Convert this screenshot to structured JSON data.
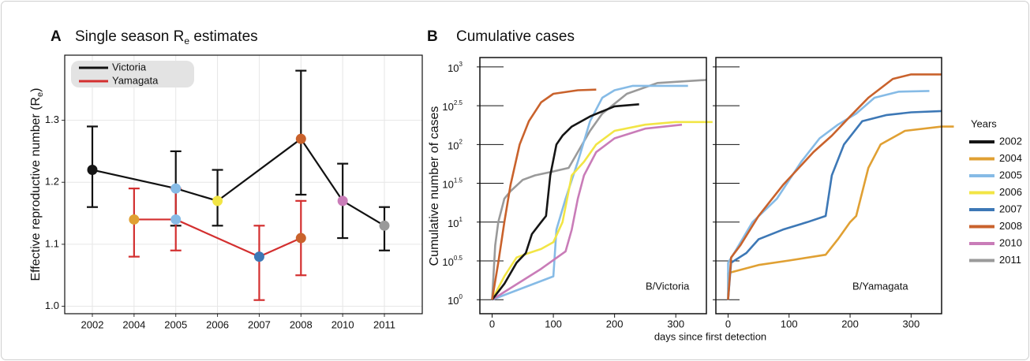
{
  "chart_data": [
    {
      "type": "pointrange",
      "panel": "A",
      "title": [
        "Single season R",
        "e",
        " estimates"
      ],
      "y_label": [
        "Effective reproductive number (R",
        "e",
        ")"
      ],
      "categories": [
        "2002",
        "2004",
        "2005",
        "2006",
        "2007",
        "2008",
        "2010",
        "2011"
      ],
      "point_colors": [
        "#151515",
        "#e0a033",
        "#86bbe6",
        "#f2e545",
        "#3d78b6",
        "#c9622c",
        "#c97cb8",
        "#9a9a9a"
      ],
      "series": [
        {
          "name": "Victoria",
          "color": "#111111",
          "values": [
            1.22,
            null,
            1.19,
            1.17,
            null,
            1.27,
            1.17,
            1.13
          ],
          "lower": [
            1.16,
            null,
            1.13,
            1.13,
            null,
            1.18,
            1.11,
            1.09
          ],
          "upper": [
            1.29,
            null,
            1.25,
            1.22,
            null,
            1.38,
            1.23,
            1.16
          ]
        },
        {
          "name": "Yamagata",
          "color": "#d32f2f",
          "values": [
            null,
            1.14,
            1.14,
            null,
            1.08,
            1.11,
            null,
            null
          ],
          "lower": [
            null,
            1.08,
            1.09,
            null,
            1.01,
            1.05,
            null,
            null
          ],
          "upper": [
            null,
            1.19,
            1.19,
            null,
            1.13,
            1.17,
            null,
            null
          ]
        }
      ],
      "ylim": [
        0.988,
        1.405
      ],
      "yticks": [
        {
          "value": 1,
          "label": "1.0"
        },
        1.1,
        1.2,
        1.3
      ],
      "grid": true,
      "legend": "top-left"
    },
    {
      "type": "line",
      "panel": "B",
      "title": "Cumulative cases",
      "y_label": "Cumulative number of cases",
      "x_label": "days since first detection",
      "log_y": true,
      "xlim": [
        -20,
        350
      ],
      "ylim": [
        0.66,
        1320
      ],
      "xticks": [
        0,
        100,
        200,
        300
      ],
      "yticks": [
        {
          "value": 1,
          "label": [
            "10",
            "0"
          ]
        },
        {
          "value": 3.162,
          "label": [
            "10",
            "0.5"
          ]
        },
        {
          "value": 10,
          "label": [
            "10",
            "1"
          ]
        },
        {
          "value": 31.62,
          "label": [
            "10",
            "1.5"
          ]
        },
        {
          "value": 100,
          "label": [
            "10",
            "2"
          ]
        },
        {
          "value": 316.2,
          "label": [
            "10",
            "2.5"
          ]
        },
        {
          "value": 1000,
          "label": [
            "10",
            "3"
          ]
        }
      ],
      "legend": {
        "title": "Years",
        "entries": [
          {
            "name": "2002",
            "color": "#151515"
          },
          {
            "name": "2004",
            "color": "#e0a033"
          },
          {
            "name": "2005",
            "color": "#86bbe6"
          },
          {
            "name": "2006",
            "color": "#f2e545"
          },
          {
            "name": "2007",
            "color": "#3d78b6"
          },
          {
            "name": "2008",
            "color": "#c9622c"
          },
          {
            "name": "2010",
            "color": "#c97cb8"
          },
          {
            "name": "2011",
            "color": "#9a9a9a"
          }
        ]
      },
      "subplots": [
        {
          "label": "B/Victoria",
          "series": [
            {
              "name": "2011",
              "color": "#9a9a9a",
              "x": [
                0,
                5,
                10,
                20,
                30,
                50,
                70,
                100,
                125,
                140,
                160,
                180,
                220,
                270,
                350
              ],
              "values": [
                1,
                5,
                10,
                20,
                25,
                35,
                40,
                45,
                50,
                80,
                150,
                250,
                450,
                620,
                680
              ]
            },
            {
              "name": "2005",
              "color": "#86bbe6",
              "x": [
                0,
                100,
                105,
                120,
                140,
                160,
                180,
                200,
                230,
                320
              ],
              "values": [
                1,
                2,
                8,
                20,
                60,
                200,
                400,
                500,
                570,
                570
              ]
            },
            {
              "name": "2006",
              "color": "#f2e545",
              "x": [
                0,
                20,
                40,
                60,
                80,
                100,
                115,
                130,
                150,
                170,
                200,
                250,
                300,
                360
              ],
              "values": [
                1,
                2,
                3.5,
                4,
                4.5,
                5.5,
                10,
                40,
                60,
                100,
                150,
                180,
                195,
                195
              ]
            },
            {
              "name": "2010",
              "color": "#c97cb8",
              "x": [
                0,
                80,
                120,
                130,
                140,
                150,
                170,
                200,
                250,
                310
              ],
              "values": [
                1,
                2.5,
                4.2,
                8,
                20,
                40,
                80,
                120,
                160,
                180
              ]
            },
            {
              "name": "2002",
              "color": "#151515",
              "x": [
                0,
                20,
                40,
                55,
                65,
                80,
                88,
                95,
                105,
                115,
                130,
                160,
                200,
                240
              ],
              "values": [
                1,
                1.6,
                3,
                4,
                7,
                10,
                12,
                40,
                100,
                130,
                170,
                230,
                310,
                330
              ]
            },
            {
              "name": "2008",
              "color": "#c9622c",
              "x": [
                0,
                10,
                20,
                30,
                45,
                60,
                80,
                100,
                140,
                170
              ],
              "values": [
                1,
                3,
                10,
                30,
                100,
                200,
                350,
                450,
                500,
                510
              ]
            }
          ]
        },
        {
          "label": "B/Yamagata",
          "series": [
            {
              "name": "2004",
              "color": "#e0a033",
              "x": [
                0,
                0,
                50,
                100,
                160,
                180,
                200,
                210,
                230,
                250,
                290,
                350,
                370
              ],
              "values": [
                1,
                2.2,
                2.8,
                3.2,
                3.8,
                6,
                10,
                12,
                50,
                100,
                150,
                170,
                170
              ]
            },
            {
              "name": "2005",
              "color": "#86bbe6",
              "x": [
                0,
                0,
                10,
                40,
                80,
                120,
                150,
                180,
                210,
                240,
                280,
                330
              ],
              "values": [
                1,
                3,
                4,
                10,
                20,
                60,
                120,
                180,
                250,
                400,
                480,
                490
              ]
            },
            {
              "name": "2007",
              "color": "#3d78b6",
              "x": [
                0,
                5,
                30,
                50,
                90,
                130,
                160,
                170,
                190,
                220,
                260,
                300,
                350
              ],
              "values": [
                1,
                3,
                4,
                6,
                8,
                10,
                12,
                40,
                100,
                200,
                240,
                260,
                270
              ]
            },
            {
              "name": "2008",
              "color": "#c9622c",
              "x": [
                0,
                5,
                20,
                50,
                90,
                140,
                170,
                200,
                230,
                270,
                300,
                350
              ],
              "values": [
                1,
                3.5,
                5,
                12,
                30,
                80,
                130,
                230,
                400,
                700,
                800,
                800
              ]
            }
          ]
        }
      ]
    }
  ]
}
